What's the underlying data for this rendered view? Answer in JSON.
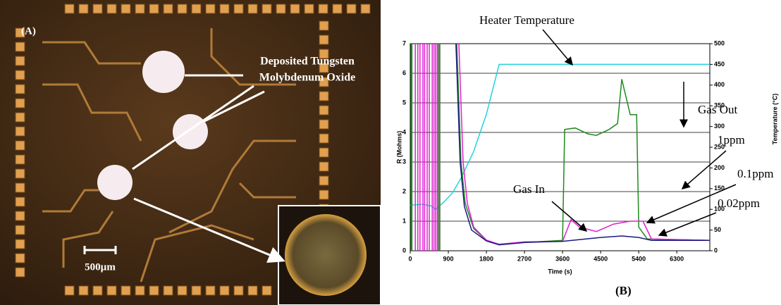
{
  "panel_a": {
    "label": "(A)",
    "caption_lines": [
      "Deposited Tungsten",
      "Molybdenum Oxide"
    ],
    "scale_bar": "500µm"
  },
  "chart_data": {
    "type": "line",
    "label": "(B)",
    "x_label": "Time (s)",
    "y_label": "R (Mohms)",
    "y2_label": "Temperature (°C)",
    "xlim": [
      0,
      7080
    ],
    "xticks": [
      0,
      900,
      1800,
      2700,
      3600,
      4500,
      5400,
      6300
    ],
    "ylim": [
      0,
      7
    ],
    "yticks": [
      0,
      1,
      2,
      3,
      4,
      5,
      6,
      7
    ],
    "y2lim": [
      0,
      500
    ],
    "y2ticks": [
      0,
      50,
      100,
      150,
      200,
      250,
      300,
      350,
      400,
      450,
      500
    ],
    "grid": true,
    "annotations": [
      "Gas In",
      "Gas Out"
    ],
    "series": [
      {
        "name": "Heater Temperature",
        "color": "#22d3e0",
        "axis": "y2",
        "x": [
          0,
          300,
          500,
          600,
          800,
          1000,
          1200,
          1500,
          1800,
          2100,
          3000,
          4000,
          5000,
          6000,
          7080
        ],
        "values": [
          110,
          112,
          108,
          100,
          118,
          140,
          175,
          240,
          330,
          450,
          450,
          450,
          450,
          450,
          450
        ]
      },
      {
        "name": "1ppm",
        "color": "#1f8a1f",
        "spikes": [
          20,
          40,
          650,
          680,
          700
        ],
        "x": [
          1100,
          1200,
          1300,
          1500,
          1800,
          2100,
          2700,
          3600,
          3650,
          3900,
          4200,
          4400,
          4700,
          4900,
          5000,
          5100,
          5200,
          5350,
          5400,
          5600,
          7080
        ],
        "values": [
          7,
          3.0,
          1.6,
          0.75,
          0.35,
          0.22,
          0.28,
          0.35,
          4.1,
          4.15,
          3.95,
          3.9,
          4.1,
          4.3,
          5.8,
          5.2,
          4.6,
          4.6,
          0.8,
          0.4,
          0.35
        ]
      },
      {
        "name": "0.1ppm",
        "color": "#e020d0",
        "spikes": [
          120,
          180,
          230,
          300,
          340,
          400,
          450,
          520,
          560,
          600,
          640,
          690
        ],
        "x": [
          1150,
          1250,
          1350,
          1500,
          1800,
          2100,
          2700,
          3600,
          3800,
          4000,
          4400,
          4800,
          5200,
          5500,
          5700,
          7080
        ],
        "values": [
          7,
          3.0,
          1.6,
          0.8,
          0.36,
          0.22,
          0.3,
          0.32,
          1.05,
          0.8,
          0.65,
          0.9,
          1.0,
          1.0,
          0.4,
          0.35
        ]
      },
      {
        "name": "0.02ppm",
        "color": "#1a1a80",
        "x": [
          1080,
          1180,
          1280,
          1450,
          1800,
          2100,
          2700,
          3600,
          4500,
          5000,
          5400,
          5700,
          7080
        ],
        "values": [
          7,
          3.0,
          1.5,
          0.7,
          0.33,
          0.2,
          0.28,
          0.32,
          0.45,
          0.5,
          0.45,
          0.35,
          0.35
        ]
      }
    ]
  }
}
